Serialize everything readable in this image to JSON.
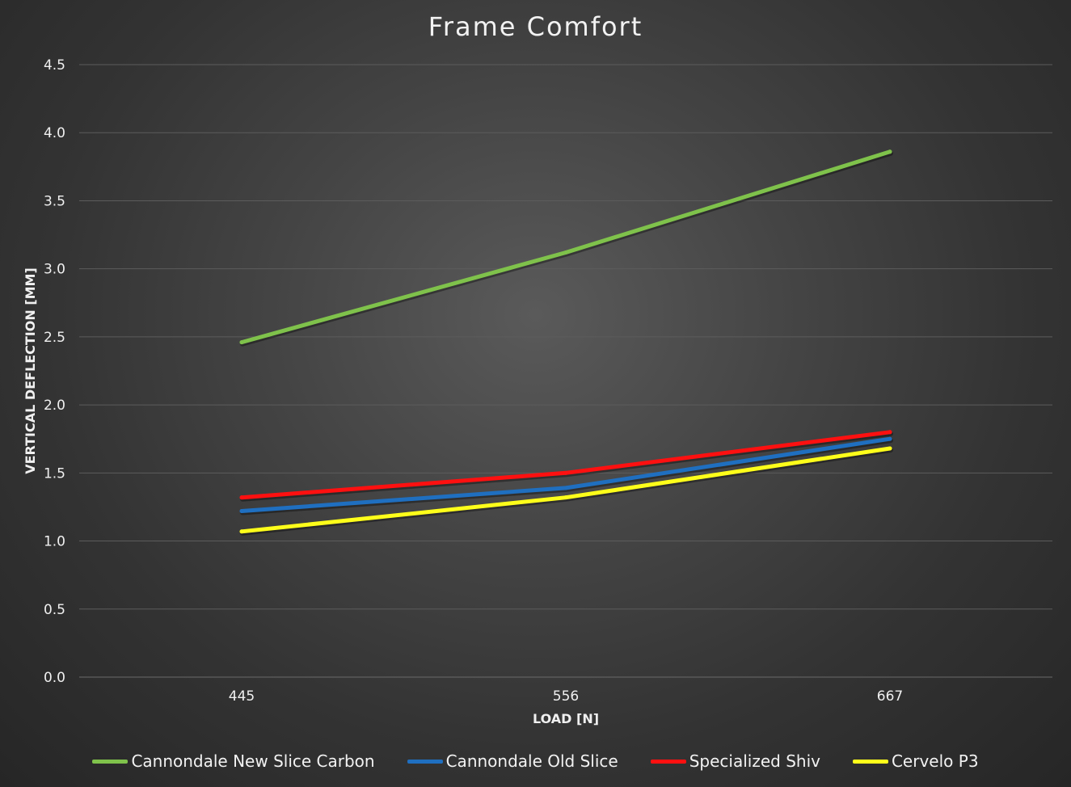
{
  "chart_data": {
    "type": "line",
    "title": "Frame Comfort",
    "xlabel": "LOAD [N]",
    "ylabel": "VERTICAL DEFLECTION [MM]",
    "categories": [
      "445",
      "556",
      "667"
    ],
    "ylim": [
      0,
      4.5
    ],
    "yticks": [
      "0.0",
      "0.5",
      "1.0",
      "1.5",
      "2.0",
      "2.5",
      "3.0",
      "3.5",
      "4.0",
      "4.5"
    ],
    "grid": true,
    "legend_position": "bottom",
    "series": [
      {
        "name": "Cannondale New Slice Carbon",
        "color": "#7fc24b",
        "values": [
          2.46,
          3.12,
          3.86
        ]
      },
      {
        "name": "Cannondale Old Slice",
        "color": "#1f6fc0",
        "values": [
          1.22,
          1.39,
          1.75
        ]
      },
      {
        "name": "Specialized Shiv",
        "color": "#ff1010",
        "values": [
          1.32,
          1.5,
          1.8
        ]
      },
      {
        "name": "Cervelo P3",
        "color": "#ffff1a",
        "values": [
          1.07,
          1.32,
          1.68
        ]
      }
    ]
  }
}
